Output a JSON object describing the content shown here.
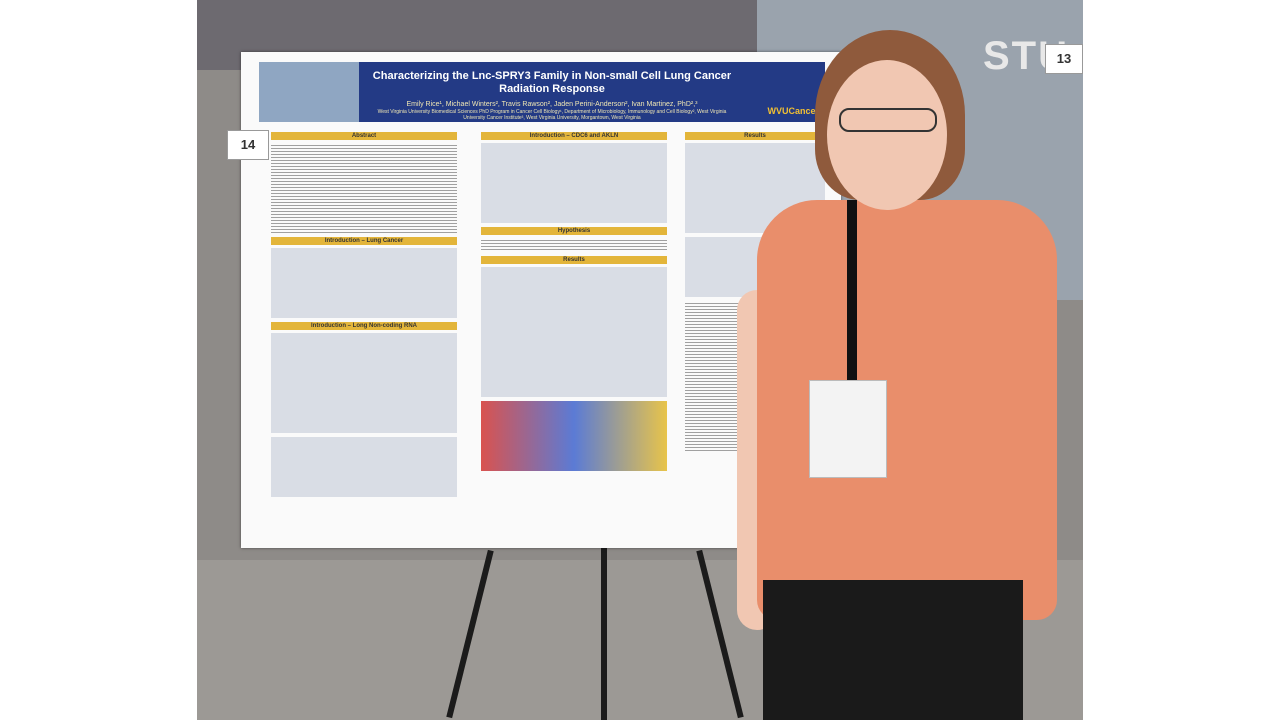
{
  "poster": {
    "title": "Characterizing the Lnc-SPRY3 Family in Non-small Cell Lung Cancer Radiation Response",
    "authors": "Emily Rice¹, Michael Winters², Travis Rawson², Jaden Perini-Anderson², Ivan Martinez, PhD²,³",
    "affiliation": "West Virginia University Biomedical Sciences PhD Program in Cancer Cell Biology¹, Department of Microbiology, Immunology and Cell Biology², West Virginia University Cancer Institute³, West Virginia University, Morgantown, West Virginia",
    "logo": "WVUCancer",
    "sections": {
      "abstract": "Abstract",
      "intro_lung": "Introduction – Lung Cancer",
      "intro_ncrna": "Introduction – Long Non-coding RNA",
      "intro_cdc6": "Introduction – CDC6 and AKLN",
      "hypothesis": "Hypothesis",
      "results_mid": "Results",
      "results_right": "Results"
    }
  },
  "scene": {
    "wall_sign": "STU",
    "board_number_left": "14",
    "board_number_right": "13"
  },
  "colors": {
    "banner": "#233a85",
    "section_header": "#e3b53a",
    "shirt": "#e98e6b"
  }
}
